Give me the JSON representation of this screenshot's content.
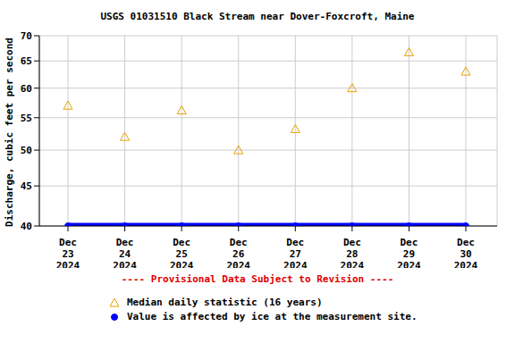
{
  "chart_data": {
    "type": "line",
    "title": "USGS 01031510 Black Stream near Dover-Foxcroft, Maine",
    "y_label": "Discharge, cubic feet per second",
    "annotation": "---- Provisional Data Subject to Revision ----",
    "categories": [
      "Dec 23 2024",
      "Dec 24 2024",
      "Dec 25 2024",
      "Dec 26 2024",
      "Dec 27 2024",
      "Dec 28 2024",
      "Dec 29 2024",
      "Dec 30 2024"
    ],
    "series": [
      {
        "name": "Median daily statistic (16 years)",
        "type": "scatter",
        "marker": "triangle",
        "color": "#e8a000",
        "values": [
          57,
          52,
          56.2,
          50,
          53.2,
          60,
          66.7,
          63
        ]
      },
      {
        "name": "Value is affected by ice at the measurement site.",
        "type": "line",
        "marker": "circle",
        "color": "#0000ff",
        "values": [
          40,
          40,
          40,
          40,
          40,
          40,
          40,
          40
        ]
      }
    ],
    "ylim": [
      40,
      70
    ],
    "yticks": [
      40,
      45,
      50,
      55,
      60,
      65,
      70
    ],
    "log": "y",
    "grid": true,
    "legend": "bottom"
  }
}
